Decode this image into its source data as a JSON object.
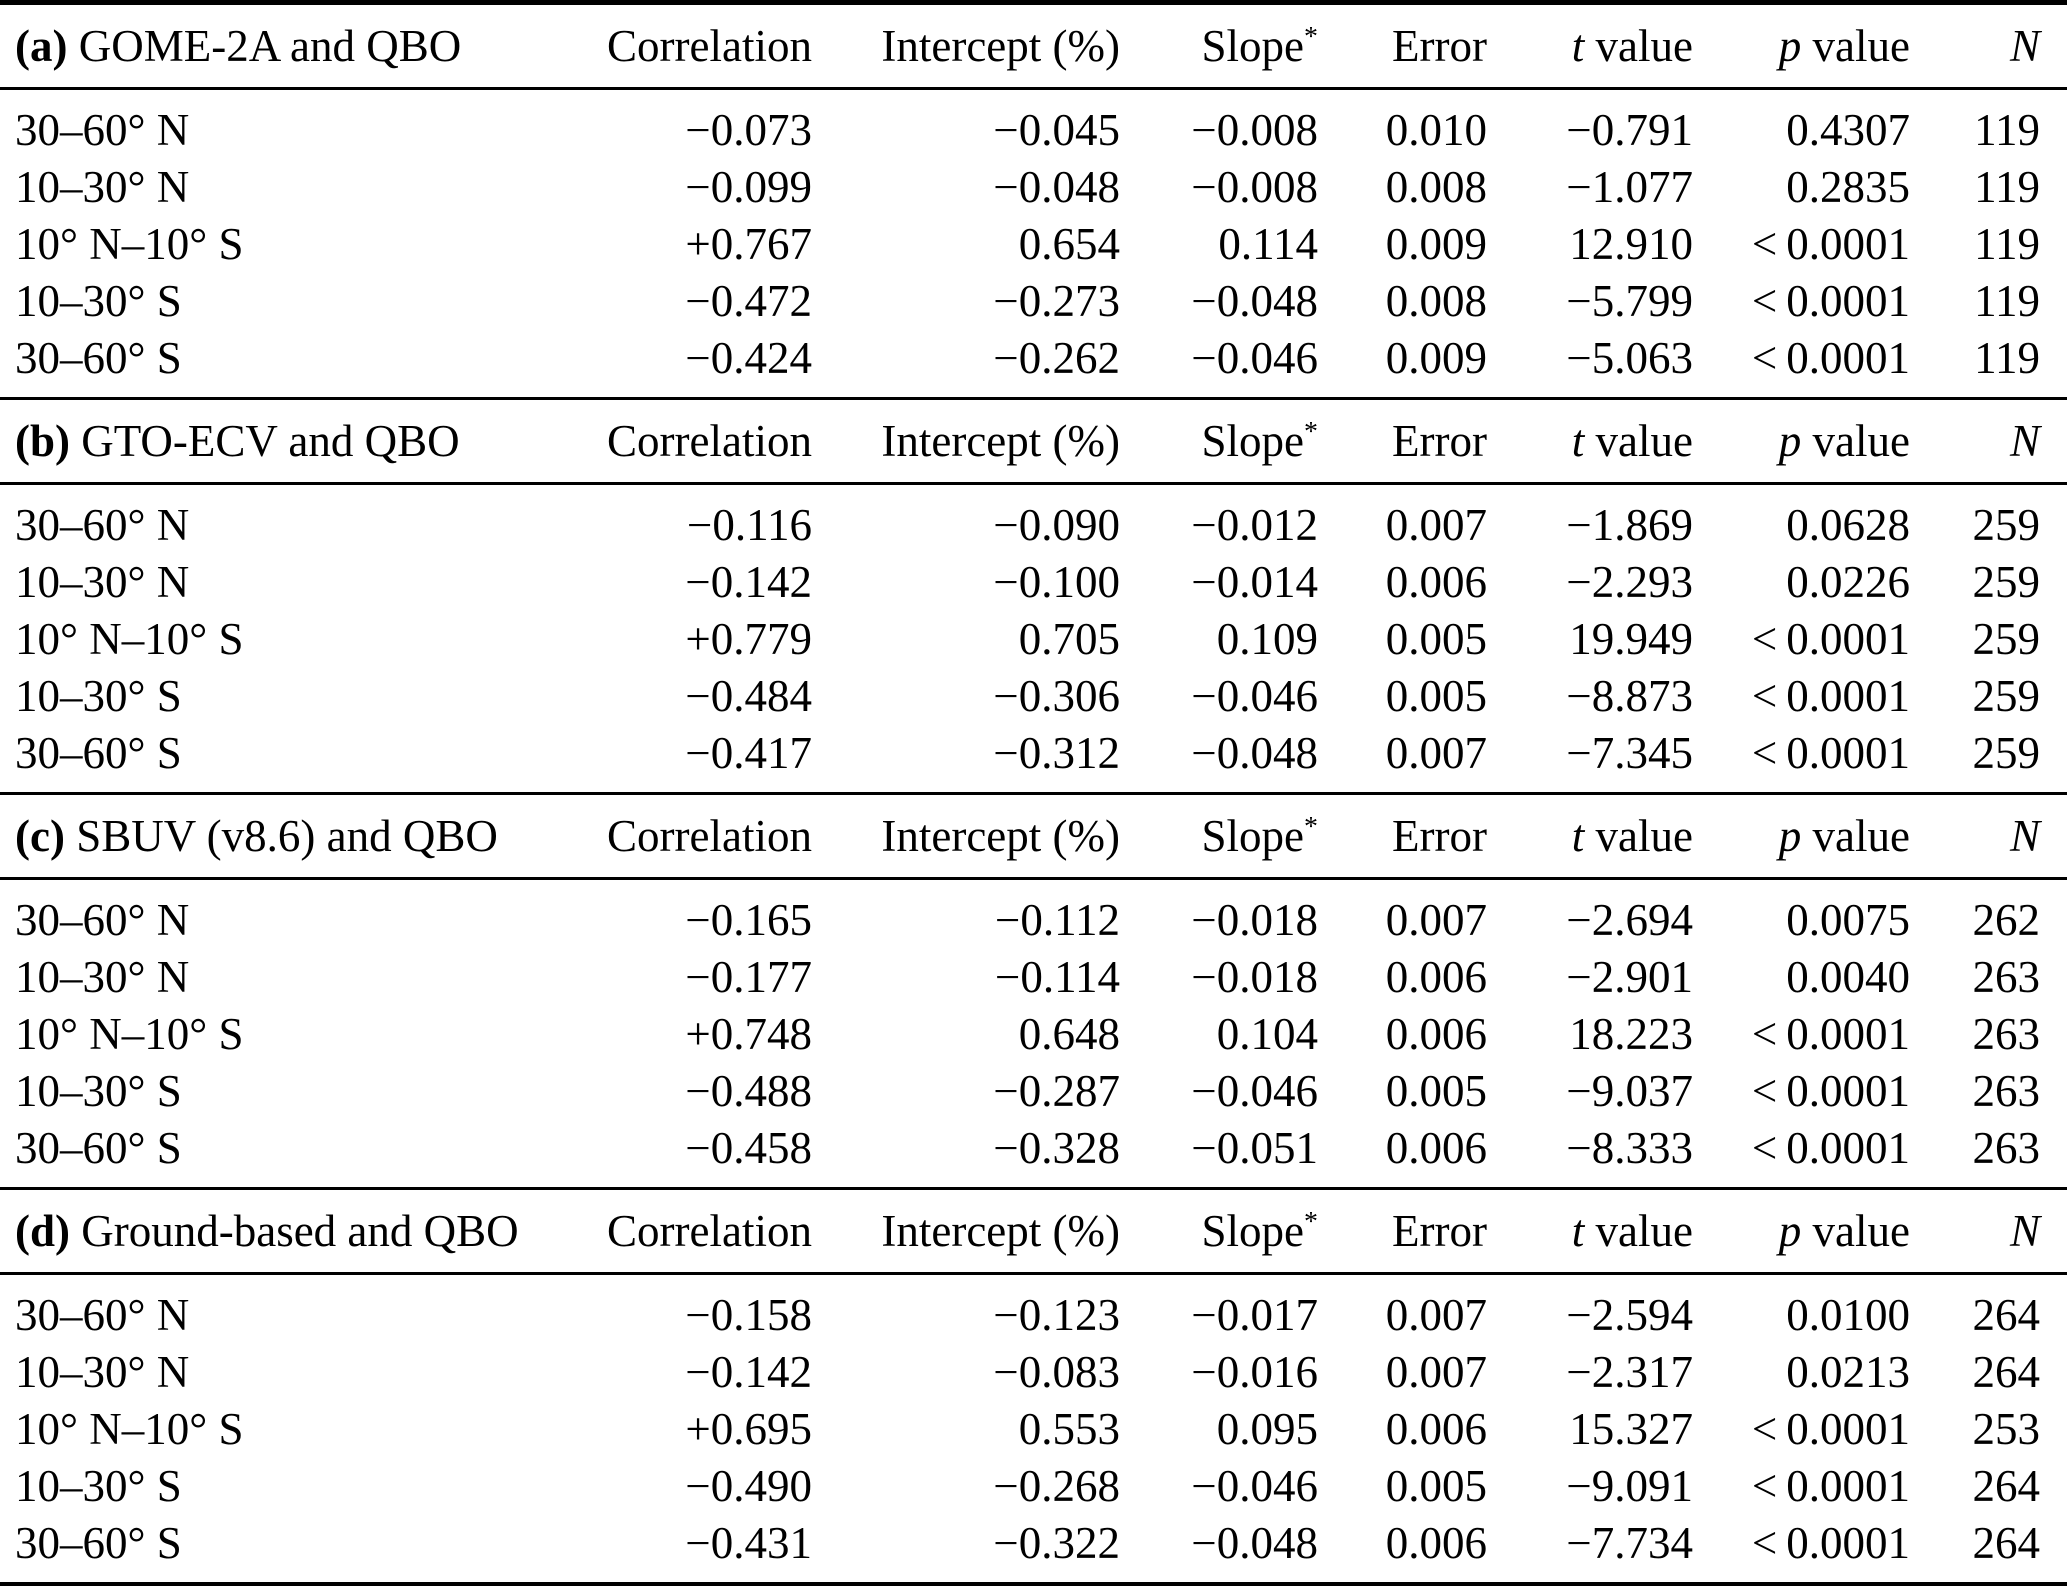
{
  "page": {
    "background": "#ffffff",
    "text_color": "#000000"
  },
  "table": {
    "columns": [
      {
        "key": "correlation",
        "label": "Correlation"
      },
      {
        "key": "intercept",
        "label": "Intercept (%)"
      },
      {
        "key": "slope",
        "label": "Slope",
        "sup": "*"
      },
      {
        "key": "error",
        "label": "Error"
      },
      {
        "key": "t-value",
        "italic": "t",
        "label": " value"
      },
      {
        "key": "p-value",
        "italic": "p",
        "label": " value"
      },
      {
        "key": "n",
        "italic": "N",
        "label": ""
      }
    ],
    "sections": [
      {
        "letter": "(a)",
        "title": "GOME-2A and QBO",
        "rows": [
          {
            "label": "30–60° N",
            "values": [
              "−0.073",
              "−0.045",
              "−0.008",
              "0.010",
              "−0.791",
              "0.4307",
              "119"
            ]
          },
          {
            "label": "10–30° N",
            "values": [
              "−0.099",
              "−0.048",
              "−0.008",
              "0.008",
              "−1.077",
              "0.2835",
              "119"
            ]
          },
          {
            "label": "10° N–10° S",
            "values": [
              "+0.767",
              "0.654",
              "0.114",
              "0.009",
              "12.910",
              "< 0.0001",
              "119"
            ]
          },
          {
            "label": "10–30° S",
            "values": [
              "−0.472",
              "−0.273",
              "−0.048",
              "0.008",
              "−5.799",
              "< 0.0001",
              "119"
            ]
          },
          {
            "label": "30–60° S",
            "values": [
              "−0.424",
              "−0.262",
              "−0.046",
              "0.009",
              "−5.063",
              "< 0.0001",
              "119"
            ]
          }
        ]
      },
      {
        "letter": "(b)",
        "title": "GTO-ECV and QBO",
        "rows": [
          {
            "label": "30–60° N",
            "values": [
              "−0.116",
              "−0.090",
              "−0.012",
              "0.007",
              "−1.869",
              "0.0628",
              "259"
            ]
          },
          {
            "label": "10–30° N",
            "values": [
              "−0.142",
              "−0.100",
              "−0.014",
              "0.006",
              "−2.293",
              "0.0226",
              "259"
            ]
          },
          {
            "label": "10° N–10° S",
            "values": [
              "+0.779",
              "0.705",
              "0.109",
              "0.005",
              "19.949",
              "< 0.0001",
              "259"
            ]
          },
          {
            "label": "10–30° S",
            "values": [
              "−0.484",
              "−0.306",
              "−0.046",
              "0.005",
              "−8.873",
              "< 0.0001",
              "259"
            ]
          },
          {
            "label": "30–60° S",
            "values": [
              "−0.417",
              "−0.312",
              "−0.048",
              "0.007",
              "−7.345",
              "< 0.0001",
              "259"
            ]
          }
        ]
      },
      {
        "letter": "(c)",
        "title": "SBUV (v8.6) and QBO",
        "rows": [
          {
            "label": "30–60° N",
            "values": [
              "−0.165",
              "−0.112",
              "−0.018",
              "0.007",
              "−2.694",
              "0.0075",
              "262"
            ]
          },
          {
            "label": "10–30° N",
            "values": [
              "−0.177",
              "−0.114",
              "−0.018",
              "0.006",
              "−2.901",
              "0.0040",
              "263"
            ]
          },
          {
            "label": "10° N–10° S",
            "values": [
              "+0.748",
              "0.648",
              "0.104",
              "0.006",
              "18.223",
              "< 0.0001",
              "263"
            ]
          },
          {
            "label": "10–30° S",
            "values": [
              "−0.488",
              "−0.287",
              "−0.046",
              "0.005",
              "−9.037",
              "< 0.0001",
              "263"
            ]
          },
          {
            "label": "30–60° S",
            "values": [
              "−0.458",
              "−0.328",
              "−0.051",
              "0.006",
              "−8.333",
              "< 0.0001",
              "263"
            ]
          }
        ]
      },
      {
        "letter": "(d)",
        "title": "Ground-based and QBO",
        "rows": [
          {
            "label": "30–60° N",
            "values": [
              "−0.158",
              "−0.123",
              "−0.017",
              "0.007",
              "−2.594",
              "0.0100",
              "264"
            ]
          },
          {
            "label": "10–30° N",
            "values": [
              "−0.142",
              "−0.083",
              "−0.016",
              "0.007",
              "−2.317",
              "0.0213",
              "264"
            ]
          },
          {
            "label": "10° N–10° S",
            "values": [
              "+0.695",
              "0.553",
              "0.095",
              "0.006",
              "15.327",
              "< 0.0001",
              "253"
            ]
          },
          {
            "label": "10–30° S",
            "values": [
              "−0.490",
              "−0.268",
              "−0.046",
              "0.005",
              "−9.091",
              "< 0.0001",
              "264"
            ]
          },
          {
            "label": "30–60° S",
            "values": [
              "−0.431",
              "−0.322",
              "−0.048",
              "0.006",
              "−7.734",
              "< 0.0001",
              "264"
            ]
          }
        ]
      }
    ]
  }
}
